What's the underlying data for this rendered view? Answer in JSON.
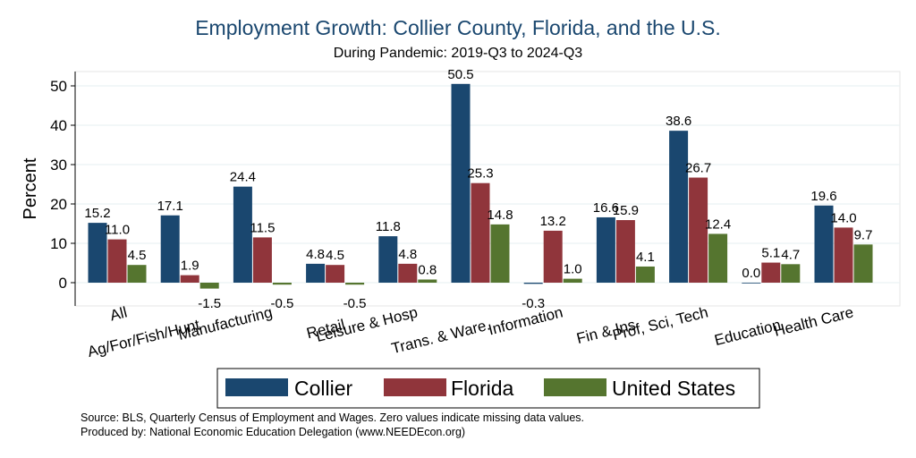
{
  "title": "Employment Growth: Collier County, Florida, and the U.S.",
  "subtitle": "During Pandemic: 2019-Q3 to 2024-Q3",
  "notes": {
    "source": "Source: BLS, Quarterly Census of Employment and Wages. Zero values indicate missing data values.",
    "produced": "Produced by: National Economic Education Delegation (www.NEEDEcon.org)"
  },
  "chart_data": {
    "type": "bar",
    "title": "Employment Growth: Collier County, Florida, and the U.S.",
    "subtitle": "During Pandemic: 2019-Q3 to 2024-Q3",
    "xlabel": "",
    "ylabel": "Percent",
    "ylim": [
      -5,
      55
    ],
    "yticks": [
      0,
      10,
      20,
      30,
      40,
      50
    ],
    "grid": true,
    "legend_position": "bottom",
    "categories": [
      "All",
      "Ag/For/Fish/Hunt",
      "Manufacturing",
      "Retail",
      "Leisure & Hosp",
      "Trans. & Ware.",
      "Information",
      "Fin & Ins",
      "Prof, Sci, Tech",
      "Education",
      "Health Care"
    ],
    "series": [
      {
        "name": "Collier",
        "color": "#1a476f",
        "values": [
          15.2,
          17.1,
          24.4,
          4.8,
          11.8,
          50.5,
          -0.3,
          16.6,
          38.6,
          0.0,
          19.6
        ]
      },
      {
        "name": "Florida",
        "color": "#90353b",
        "values": [
          11.0,
          1.9,
          11.5,
          4.5,
          4.8,
          25.3,
          13.2,
          15.9,
          26.7,
          5.1,
          14.0
        ]
      },
      {
        "name": "United States",
        "color": "#55752f",
        "values": [
          4.5,
          -1.5,
          -0.5,
          -0.5,
          0.8,
          14.8,
          1.0,
          4.1,
          12.4,
          4.7,
          9.7
        ]
      }
    ]
  }
}
